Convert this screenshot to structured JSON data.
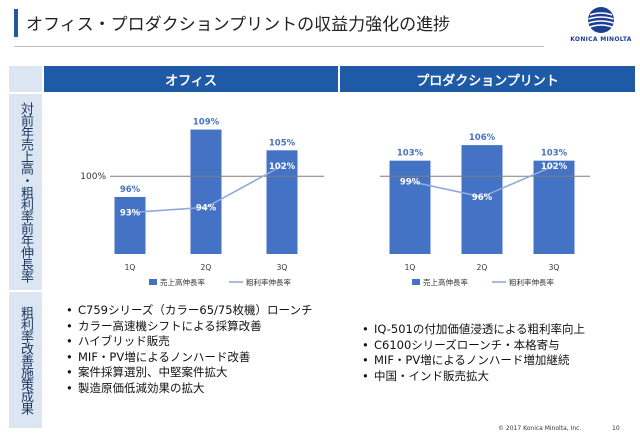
{
  "slide": {
    "title": "オフィス・プロダクションプリントの収益力強化の進捗",
    "logo_text": "KONICA MINOLTA",
    "copyright": "© 2017 Konica Minolta, Inc.",
    "page_number": "10"
  },
  "colors": {
    "accent": "#1f5aa6",
    "light": "#dce6f2",
    "bar": "#4472c4",
    "line": "#8faadc"
  },
  "table": {
    "col_headers": [
      "オフィス",
      "プロダクションプリント"
    ],
    "row_labels": [
      "対前年売上高・粗利率前年伸長率",
      "粗利率改善施策成果"
    ]
  },
  "office_measures": [
    "C759シリーズ（カラー65/75枚機）ローンチ",
    "カラー高速機シフトによる採算改善",
    "ハイブリッド販売",
    "MIF・PV増によるノンハード改善",
    "案件採算選別、中堅案件拡大",
    "製造原価低減効果の拡大"
  ],
  "production_measures": [
    "IQ-501の付加価値浸透による粗利率向上",
    "C6100シリーズローンチ・本格寄与",
    "MIF・PV増によるノンハード増加継続",
    "中国・インド販売拡大"
  ],
  "chart_data": [
    {
      "type": "bar",
      "categories": [
        "1Q",
        "2Q",
        "3Q"
      ],
      "series": [
        {
          "name": "売上高伸長率",
          "kind": "bar",
          "values": [
            96,
            109,
            105
          ],
          "labels": [
            "96%",
            "109%",
            "105%"
          ]
        },
        {
          "name": "粗利率伸長率",
          "kind": "line",
          "values": [
            93,
            94,
            102
          ],
          "labels": [
            "93%",
            "94%",
            "102%"
          ]
        }
      ],
      "reference_line": {
        "value": 100,
        "label": "100%"
      },
      "ylim": [
        85,
        112
      ]
    },
    {
      "type": "bar",
      "categories": [
        "1Q",
        "2Q",
        "3Q"
      ],
      "series": [
        {
          "name": "売上高伸長率",
          "kind": "bar",
          "values": [
            103,
            106,
            103
          ],
          "labels": [
            "103%",
            "106%",
            "103%"
          ]
        },
        {
          "name": "粗利率伸長率",
          "kind": "line",
          "values": [
            99,
            96,
            102
          ],
          "labels": [
            "99%",
            "96%",
            "102%"
          ]
        }
      ],
      "reference_line": {
        "value": 100
      },
      "ylim": [
        85,
        112
      ]
    }
  ]
}
